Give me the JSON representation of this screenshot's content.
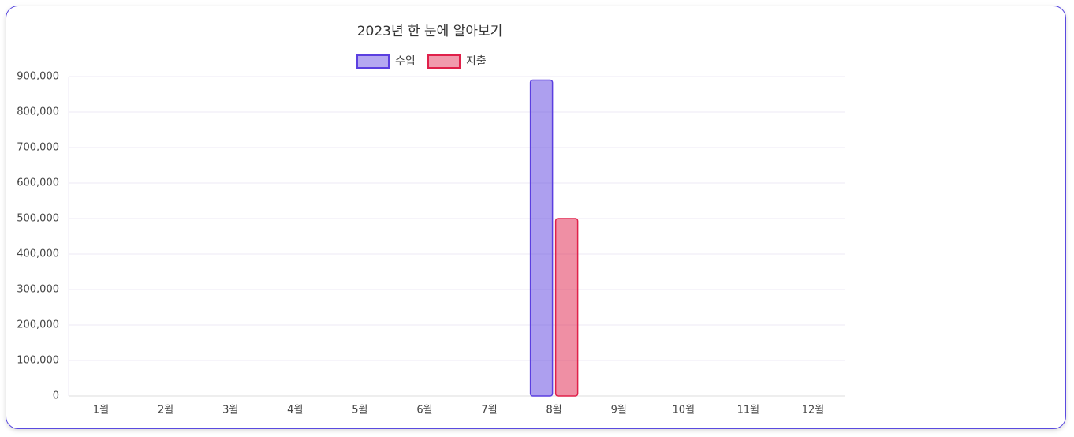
{
  "chart_data": {
    "type": "bar",
    "title": "2023년 한 눈에 알아보기",
    "categories": [
      "1월",
      "2월",
      "3월",
      "4월",
      "5월",
      "6월",
      "7월",
      "8월",
      "9월",
      "10월",
      "11월",
      "12월"
    ],
    "series": [
      {
        "name": "수입",
        "color": "#5b3fe0",
        "values": [
          0,
          0,
          0,
          0,
          0,
          0,
          0,
          890000,
          0,
          0,
          0,
          0
        ]
      },
      {
        "name": "지출",
        "color": "#e0204a",
        "values": [
          0,
          0,
          0,
          0,
          0,
          0,
          0,
          500000,
          0,
          0,
          0,
          0
        ]
      }
    ],
    "ylim": [
      0,
      900000
    ],
    "yticks": [
      0,
      {
        "value": 100000,
        "label": "100,000"
      },
      {
        "value": 200000,
        "label": "200,000"
      },
      {
        "value": 300000,
        "label": "300,000"
      },
      {
        "value": 400000,
        "label": "400,000"
      },
      {
        "value": 500000,
        "label": "500,000"
      },
      {
        "value": 600000,
        "label": "600,000"
      },
      {
        "value": 700000,
        "label": "700,000"
      },
      {
        "value": 800000,
        "label": "800,000"
      },
      {
        "value": 900000,
        "label": "900,000"
      }
    ],
    "grid": true,
    "legend": "top"
  }
}
